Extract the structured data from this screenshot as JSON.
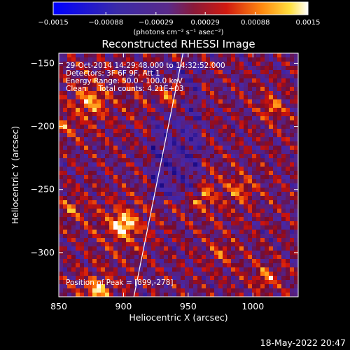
{
  "chart_data": {
    "type": "heatmap",
    "title": "Reconstructed RHESSI Image",
    "xlabel": "Heliocentric X (arcsec)",
    "ylabel": "Heliocentric Y (arcsec)",
    "xlim": [
      850,
      1035
    ],
    "ylim": [
      -335,
      -142
    ],
    "x_ticks": [
      850,
      900,
      950,
      1000
    ],
    "y_ticks": [
      -150,
      -200,
      -250,
      -300
    ],
    "x_tick_labels": [
      "850",
      "900",
      "950",
      "1000"
    ],
    "y_tick_labels": [
      "−150",
      "−200",
      "−250",
      "−300"
    ],
    "colorbar": {
      "range": [
        -0.0015,
        0.0015
      ],
      "ticks": [
        -0.0015,
        -0.00088,
        -0.00029,
        0.00029,
        0.00088,
        0.0015
      ],
      "tick_labels": [
        "−0.0015",
        "−0.00088",
        "−0.00029",
        "0.00029",
        "0.00088",
        "0.0015"
      ],
      "unit_label": "(photons cm⁻² s⁻¹ asec⁻²)",
      "colormap": "blue-purple-red-orange-yellow-white"
    },
    "annotations": [
      "29-Oct-2014 14:29:48.000 to 14:32:52.000",
      "Detectors: 3F 6F 9F, Att 1",
      "Energy Range: 50.0 - 100.0 keV",
      "Clean     Total counts: 4.21E+03"
    ],
    "peak_label": "Position of Peak = [899,-278]",
    "peak": {
      "x": 899,
      "y": -278
    },
    "limb_line": [
      [
        908,
        -335
      ],
      [
        946,
        -142
      ]
    ],
    "grid": false
  },
  "footer": {
    "timestamp": "18-May-2022 20:47"
  },
  "colors": {
    "background": "#000000",
    "text": "#ffffff",
    "limb": "#ffffff"
  }
}
